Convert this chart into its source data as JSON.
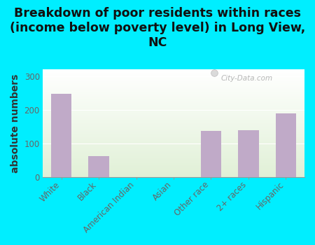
{
  "title": "Breakdown of poor residents within races\n(income below poverty level) in Long View,\nNC",
  "categories": [
    "White",
    "Black",
    "American Indian",
    "Asian",
    "Other race",
    "2+ races",
    "Hispanic"
  ],
  "values": [
    248,
    63,
    0,
    0,
    138,
    140,
    190
  ],
  "bar_color": "#c0aac8",
  "ylabel": "absolute numbers",
  "ylim": [
    0,
    320
  ],
  "yticks": [
    0,
    100,
    200,
    300
  ],
  "bg_outer": "#00eeff",
  "grid_color": "#ffffff",
  "watermark": "City-Data.com",
  "title_fontsize": 12.5,
  "ylabel_fontsize": 10,
  "tick_fontsize": 8.5,
  "title_color": "#111111",
  "tick_color": "#666666",
  "ylabel_color": "#333333"
}
